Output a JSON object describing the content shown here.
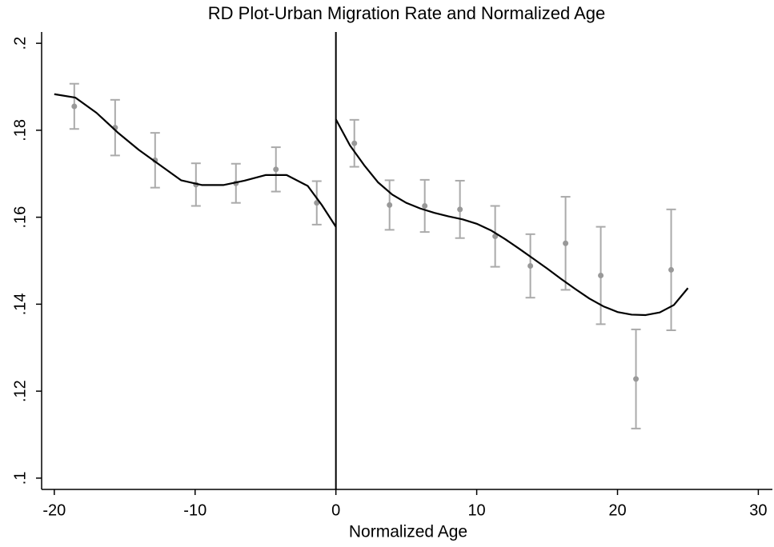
{
  "chart_data": {
    "type": "rdplot",
    "title": "RD Plot-Urban Migration Rate and Normalized Age",
    "x_label": "Normalized Age",
    "xlim": [
      -20.9,
      31.0
    ],
    "ylim": [
      0.0974,
      0.2026
    ],
    "xticks": [
      -20,
      -10,
      0,
      10,
      20,
      30
    ],
    "yticks": [
      {
        "value": 0.1,
        "label": ".1"
      },
      {
        "value": 0.12,
        "label": ".12"
      },
      {
        "value": 0.14,
        "label": ".14"
      },
      {
        "value": 0.16,
        "label": ".16"
      },
      {
        "value": 0.18,
        "label": ".18"
      },
      {
        "value": 0.2,
        "label": ".2"
      }
    ],
    "cutoff": 0,
    "points": {
      "color": "#999999",
      "errorbar_color": "#aaaaaa",
      "x": [
        -18.58,
        -15.68,
        -12.84,
        -9.94,
        -7.1,
        -4.26,
        -1.36,
        1.31,
        3.81,
        6.31,
        8.81,
        11.31,
        13.81,
        16.31,
        18.81,
        21.31,
        23.81
      ],
      "values": [
        0.1855,
        0.1806,
        0.1731,
        0.1675,
        0.1678,
        0.171,
        0.1633,
        0.177,
        0.1628,
        0.1626,
        0.1618,
        0.1556,
        0.1488,
        0.154,
        0.1466,
        0.1228,
        0.1479
      ],
      "errors": [
        0.0052,
        0.0064,
        0.0063,
        0.0049,
        0.0045,
        0.0051,
        0.005,
        0.0054,
        0.0057,
        0.006,
        0.0066,
        0.007,
        0.0073,
        0.0107,
        0.0112,
        0.0114,
        0.0139
      ]
    },
    "fits": [
      {
        "color": "#000000",
        "x": [
          -20,
          -18.5,
          -17,
          -15.5,
          -14,
          -12.5,
          -11,
          -9.5,
          -8,
          -6.5,
          -5,
          -3.5,
          -2,
          -1,
          0
        ],
        "values": [
          0.1883,
          0.1875,
          0.184,
          0.1795,
          0.1755,
          0.172,
          0.1685,
          0.1674,
          0.1674,
          0.1684,
          0.1697,
          0.1697,
          0.1672,
          0.1628,
          0.1578
        ]
      },
      {
        "color": "#000000",
        "x": [
          0,
          1,
          2,
          3,
          4,
          5,
          6,
          7,
          8,
          9,
          10,
          11,
          12,
          13,
          14,
          15,
          16,
          17,
          18,
          19,
          20,
          21,
          22,
          23,
          24,
          25
        ],
        "values": [
          0.1825,
          0.1765,
          0.172,
          0.168,
          0.1652,
          0.1633,
          0.162,
          0.161,
          0.1602,
          0.1595,
          0.1585,
          0.157,
          0.155,
          0.1528,
          0.1505,
          0.1482,
          0.1458,
          0.1435,
          0.1413,
          0.1395,
          0.1382,
          0.1376,
          0.1375,
          0.1381,
          0.1398,
          0.1437
        ]
      }
    ]
  }
}
